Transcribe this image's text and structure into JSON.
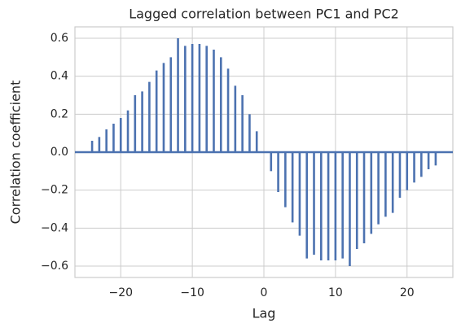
{
  "chart_data": {
    "type": "bar",
    "title": "Lagged correlation between PC1 and PC2",
    "x_label": "Lag",
    "y_label": "Correlation coefficient",
    "color": "#4c72b0",
    "grid": true,
    "x": [
      -24,
      -23,
      -22,
      -21,
      -20,
      -19,
      -18,
      -17,
      -16,
      -15,
      -14,
      -13,
      -12,
      -11,
      -10,
      -9,
      -8,
      -7,
      -6,
      -5,
      -4,
      -3,
      -2,
      -1,
      0,
      1,
      2,
      3,
      4,
      5,
      6,
      7,
      8,
      9,
      10,
      11,
      12,
      13,
      14,
      15,
      16,
      17,
      18,
      19,
      20,
      21,
      22,
      23,
      24
    ],
    "values": [
      0.06,
      0.08,
      0.12,
      0.15,
      0.18,
      0.22,
      0.3,
      0.32,
      0.37,
      0.43,
      0.47,
      0.5,
      0.6,
      0.56,
      0.57,
      0.57,
      0.56,
      0.54,
      0.5,
      0.44,
      0.35,
      0.3,
      0.2,
      0.11,
      0.0,
      -0.1,
      -0.21,
      -0.29,
      -0.37,
      -0.44,
      -0.56,
      -0.54,
      -0.57,
      -0.57,
      -0.57,
      -0.56,
      -0.6,
      -0.51,
      -0.48,
      -0.43,
      -0.38,
      -0.34,
      -0.32,
      -0.24,
      -0.2,
      -0.16,
      -0.13,
      -0.09,
      -0.07
    ],
    "xlim": [
      -26.4,
      26.4
    ],
    "xticks": [
      {
        "value": -20,
        "label": "−20"
      },
      {
        "value": -10,
        "label": "−10"
      },
      0,
      10,
      20
    ],
    "ylim": [
      -0.66,
      0.66
    ],
    "yticks": [
      {
        "value": -0.6,
        "label": "−0.6"
      },
      {
        "value": -0.4,
        "label": "−0.4"
      },
      {
        "value": -0.2,
        "label": "−0.2"
      },
      {
        "value": 0,
        "label": "0.0"
      },
      0.2,
      0.4,
      0.6
    ]
  }
}
